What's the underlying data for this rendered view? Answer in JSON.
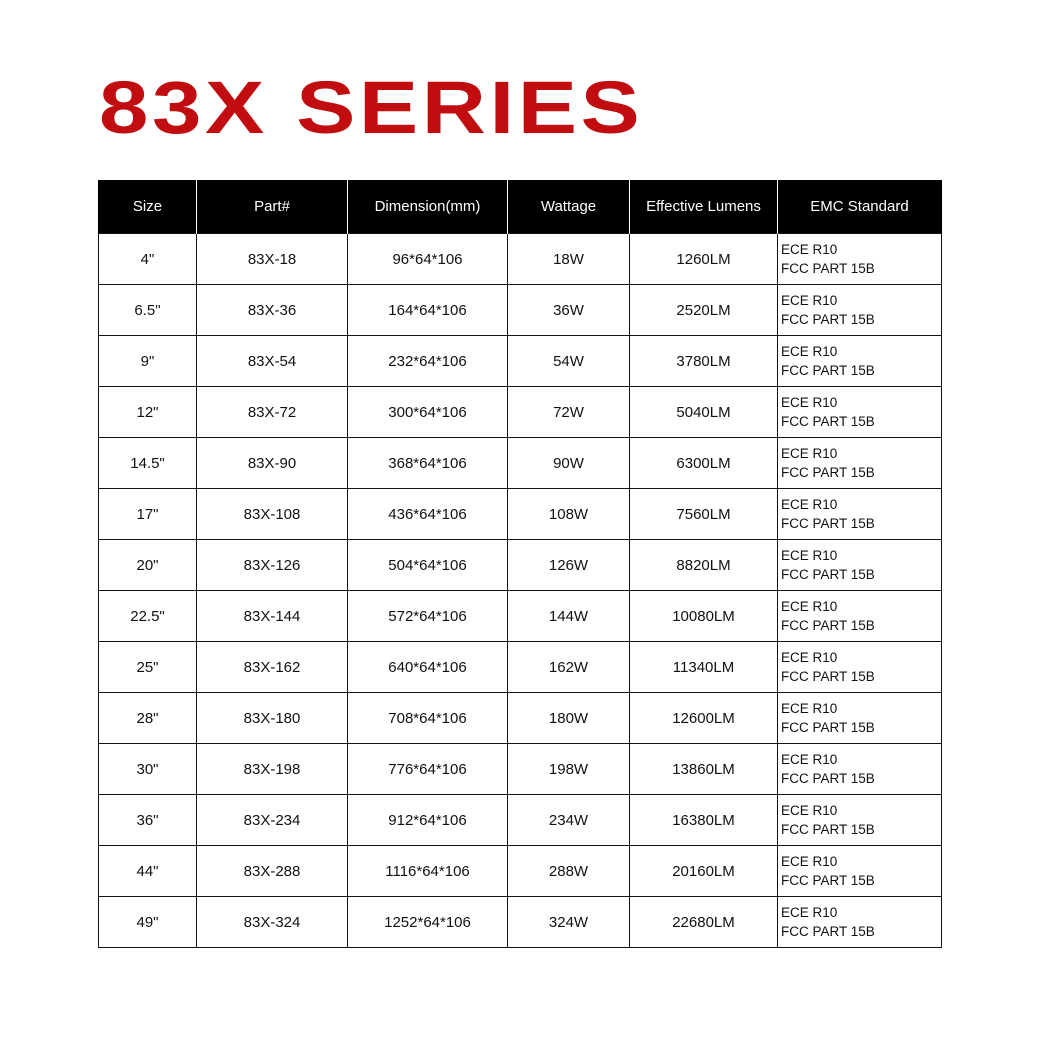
{
  "title": "83X SERIES",
  "columns": [
    "Size",
    "Part#",
    "Dimension(mm)",
    "Wattage",
    "Effective Lumens",
    "EMC Standard"
  ],
  "rows": [
    {
      "size": "4\"",
      "part": "83X-18",
      "dimension": "96*64*106",
      "wattage": "18W",
      "lumens": "1260LM",
      "emc": [
        "ECE R10",
        "FCC PART 15B"
      ]
    },
    {
      "size": "6.5\"",
      "part": "83X-36",
      "dimension": "164*64*106",
      "wattage": "36W",
      "lumens": "2520LM",
      "emc": [
        "ECE R10",
        "FCC PART 15B"
      ]
    },
    {
      "size": "9\"",
      "part": "83X-54",
      "dimension": "232*64*106",
      "wattage": "54W",
      "lumens": "3780LM",
      "emc": [
        "ECE R10",
        "FCC PART 15B"
      ]
    },
    {
      "size": "12\"",
      "part": "83X-72",
      "dimension": "300*64*106",
      "wattage": "72W",
      "lumens": "5040LM",
      "emc": [
        "ECE R10",
        "FCC PART 15B"
      ]
    },
    {
      "size": "14.5\"",
      "part": "83X-90",
      "dimension": "368*64*106",
      "wattage": "90W",
      "lumens": "6300LM",
      "emc": [
        "ECE R10",
        "FCC PART 15B"
      ]
    },
    {
      "size": "17\"",
      "part": "83X-108",
      "dimension": "436*64*106",
      "wattage": "108W",
      "lumens": "7560LM",
      "emc": [
        "ECE R10",
        "FCC PART 15B"
      ]
    },
    {
      "size": "20\"",
      "part": "83X-126",
      "dimension": "504*64*106",
      "wattage": "126W",
      "lumens": "8820LM",
      "emc": [
        "ECE R10",
        "FCC PART 15B"
      ]
    },
    {
      "size": "22.5\"",
      "part": "83X-144",
      "dimension": "572*64*106",
      "wattage": "144W",
      "lumens": "10080LM",
      "emc": [
        "ECE R10",
        "FCC PART 15B"
      ]
    },
    {
      "size": "25\"",
      "part": "83X-162",
      "dimension": "640*64*106",
      "wattage": "162W",
      "lumens": "11340LM",
      "emc": [
        "ECE R10",
        "FCC PART 15B"
      ]
    },
    {
      "size": "28\"",
      "part": "83X-180",
      "dimension": "708*64*106",
      "wattage": "180W",
      "lumens": "12600LM",
      "emc": [
        "ECE R10",
        "FCC PART 15B"
      ]
    },
    {
      "size": "30\"",
      "part": "83X-198",
      "dimension": "776*64*106",
      "wattage": "198W",
      "lumens": "13860LM",
      "emc": [
        "ECE R10",
        "FCC PART 15B"
      ]
    },
    {
      "size": "36\"",
      "part": "83X-234",
      "dimension": "912*64*106",
      "wattage": "234W",
      "lumens": "16380LM",
      "emc": [
        "ECE R10",
        "FCC PART 15B"
      ]
    },
    {
      "size": "44\"",
      "part": "83X-288",
      "dimension": "1116*64*106",
      "wattage": "288W",
      "lumens": "20160LM",
      "emc": [
        "ECE R10",
        "FCC PART 15B"
      ]
    },
    {
      "size": "49\"",
      "part": "83X-324",
      "dimension": "1252*64*106",
      "wattage": "324W",
      "lumens": "22680LM",
      "emc": [
        "ECE R10",
        "FCC PART 15B"
      ]
    }
  ],
  "colors": {
    "title": "#c10d0f",
    "header_bg": "#000000",
    "header_text": "#ffffff"
  }
}
